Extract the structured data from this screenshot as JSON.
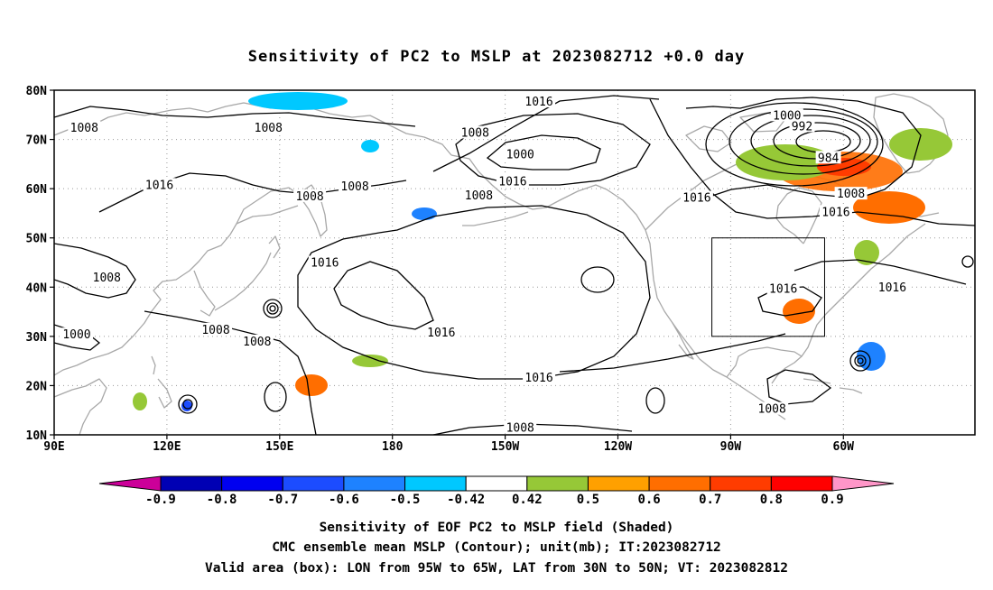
{
  "title": "Sensitivity of PC2 to MSLP at 2023082712 +0.0 day",
  "map": {
    "lon_ticks": [
      "90E",
      "120E",
      "150E",
      "180",
      "150W",
      "120W",
      "90W",
      "60W"
    ],
    "lat_ticks": [
      "80N",
      "70N",
      "60N",
      "50N",
      "40N",
      "30N",
      "20N",
      "10N"
    ],
    "lon_range": [
      "90E",
      "25W"
    ],
    "lat_range": [
      "10N",
      "80N"
    ],
    "grid": "dotted",
    "coastline_color": "#a8a8a8",
    "contour_color": "#000000",
    "contour_labels": [
      {
        "text": "1008",
        "lon": 98,
        "lat": 72.3
      },
      {
        "text": "1008",
        "lon": 147,
        "lat": 72.3
      },
      {
        "text": "1016",
        "lon": 219,
        "lat": 77.6
      },
      {
        "text": "1008",
        "lon": 202,
        "lat": 71.3
      },
      {
        "text": "1000",
        "lon": 214,
        "lat": 66.9
      },
      {
        "text": "1000",
        "lon": 285,
        "lat": 74.8
      },
      {
        "text": "992",
        "lon": 289,
        "lat": 72.6
      },
      {
        "text": "984",
        "lon": 296,
        "lat": 66.2
      },
      {
        "text": "1016",
        "lon": 118,
        "lat": 60.7
      },
      {
        "text": "1008",
        "lon": 158,
        "lat": 58.4
      },
      {
        "text": "1008",
        "lon": 170,
        "lat": 60.4
      },
      {
        "text": "1008",
        "lon": 203,
        "lat": 58.6
      },
      {
        "text": "1016",
        "lon": 212,
        "lat": 61.4
      },
      {
        "text": "1008",
        "lon": 302,
        "lat": 58.9
      },
      {
        "text": "1016",
        "lon": 298,
        "lat": 55.2
      },
      {
        "text": "1016",
        "lon": 261,
        "lat": 58.1
      },
      {
        "text": "1016",
        "lon": 162,
        "lat": 44.9
      },
      {
        "text": "1008",
        "lon": 104,
        "lat": 41.9
      },
      {
        "text": "1016",
        "lon": 284,
        "lat": 39.6
      },
      {
        "text": "1016",
        "lon": 313,
        "lat": 39.9
      },
      {
        "text": "1000",
        "lon": 96,
        "lat": 30.3
      },
      {
        "text": "1008",
        "lon": 133,
        "lat": 31.3
      },
      {
        "text": "1008",
        "lon": 144,
        "lat": 28.9
      },
      {
        "text": "1016",
        "lon": 193,
        "lat": 30.7
      },
      {
        "text": "1016",
        "lon": 219,
        "lat": 21.5
      },
      {
        "text": "1008",
        "lon": 214,
        "lat": 11.4
      },
      {
        "text": "1008",
        "lon": 281,
        "lat": 15.2
      }
    ],
    "box": {
      "lon_min": 265,
      "lon_max": 295,
      "lat_min": 30,
      "lat_max": 50
    }
  },
  "colorbar": {
    "labels": [
      "-0.9",
      "-0.8",
      "-0.7",
      "-0.6",
      "-0.5",
      "-0.42",
      "0.42",
      "0.5",
      "0.6",
      "0.7",
      "0.8",
      "0.9"
    ],
    "colors": [
      "#cc0099",
      "#0000b4",
      "#0000f0",
      "#1c4cff",
      "#1e82ff",
      "#00c8ff",
      "#ffffff",
      "#96c837",
      "#ffa000",
      "#ff6e00",
      "#ff3c00",
      "#ff0000",
      "#ff96c8"
    ]
  },
  "captions": [
    "Sensitivity of EOF PC2 to MSLP field (Shaded)",
    "CMC ensemble mean MSLP (Contour); unit(mb); IT:2023082712",
    "Valid area (box): LON from 95W to 65W, LAT from 30N to 50N; VT: 2023082812"
  ]
}
